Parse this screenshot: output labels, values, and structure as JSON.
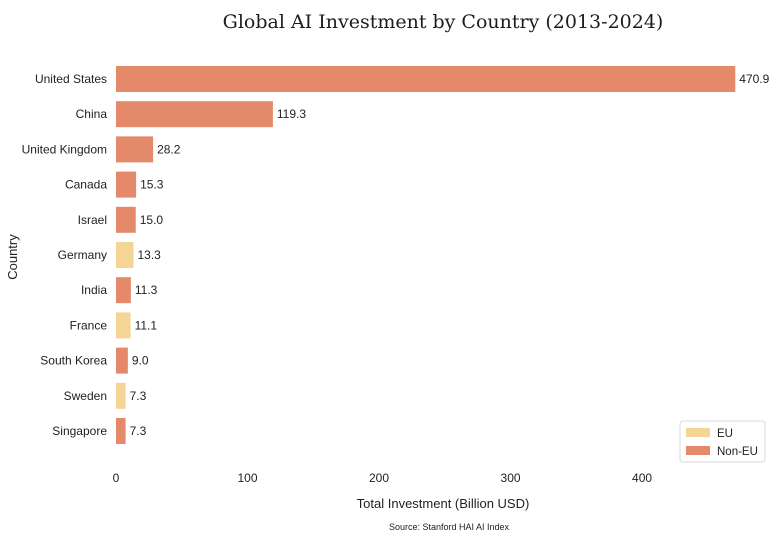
{
  "chart_data": {
    "type": "bar",
    "orientation": "horizontal",
    "title": "Global AI Investment by Country (2013-2024)",
    "xlabel": "Total Investment (Billion USD)",
    "ylabel": "Country",
    "source": "Source: Stanford HAI AI Index",
    "xlim": [
      0,
      476
    ],
    "xticks": [
      0,
      100,
      200,
      300,
      400
    ],
    "grid": false,
    "legend_position": "bottom-right",
    "colors": {
      "EU": "#f5d596",
      "Non-EU": "#e4896a"
    },
    "legend": [
      "EU",
      "Non-EU"
    ],
    "categories": [
      "United States",
      "China",
      "United Kingdom",
      "Canada",
      "Israel",
      "Germany",
      "India",
      "France",
      "South Korea",
      "Sweden",
      "Singapore"
    ],
    "values": [
      470.9,
      119.3,
      28.2,
      15.3,
      15.0,
      13.3,
      11.3,
      11.1,
      9.0,
      7.3,
      7.3
    ],
    "value_labels": [
      "470.9",
      "119.3",
      "28.2",
      "15.3",
      "15.0",
      "13.3",
      "11.3",
      "11.1",
      "9.0",
      "7.3",
      "7.3"
    ],
    "groups": [
      "Non-EU",
      "Non-EU",
      "Non-EU",
      "Non-EU",
      "Non-EU",
      "EU",
      "Non-EU",
      "EU",
      "Non-EU",
      "EU",
      "Non-EU"
    ]
  }
}
